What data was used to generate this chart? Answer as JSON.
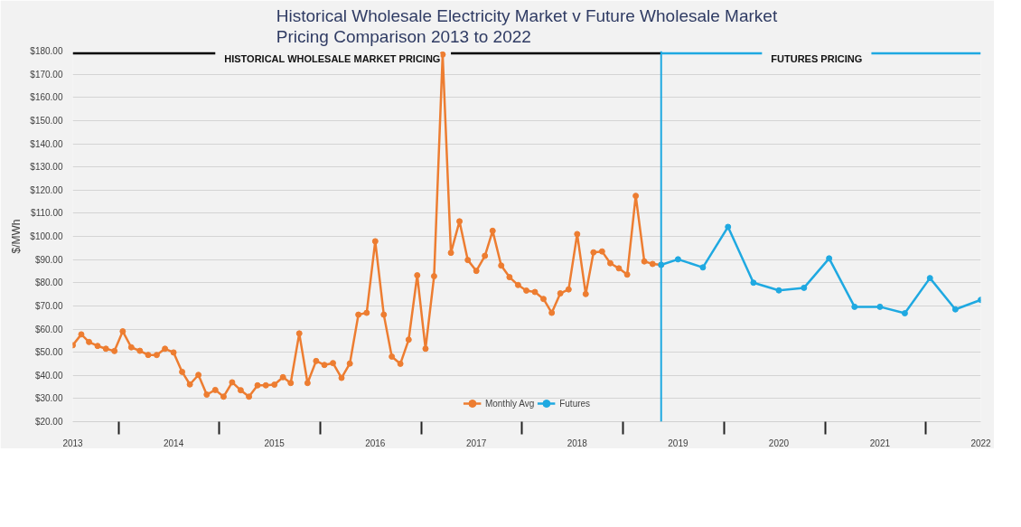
{
  "chart_data": {
    "type": "line",
    "title": "Historical Wholesale Electricity Market v Future Wholesale Market\nPricing Comparison 2013 to 2022",
    "ylabel": "$/MWh",
    "x": [
      "2013-01",
      "2013-02",
      "2013-03",
      "2013-04",
      "2013-05",
      "2013-06",
      "2013-07",
      "2013-08",
      "2013-09",
      "2013-10",
      "2013-11",
      "2013-12",
      "2014-01",
      "2014-02",
      "2014-03",
      "2014-04",
      "2014-05",
      "2014-06",
      "2014-07",
      "2014-08",
      "2014-09",
      "2014-10",
      "2014-11",
      "2014-12",
      "2015-01",
      "2015-02",
      "2015-03",
      "2015-04",
      "2015-05",
      "2015-06",
      "2015-07",
      "2015-08",
      "2015-09",
      "2015-10",
      "2015-11",
      "2015-12",
      "2016-01",
      "2016-02",
      "2016-03",
      "2016-04",
      "2016-05",
      "2016-06",
      "2016-07",
      "2016-08",
      "2016-09",
      "2016-10",
      "2016-11",
      "2016-12",
      "2017-01",
      "2017-02",
      "2017-03",
      "2017-04",
      "2017-05",
      "2017-06",
      "2017-07",
      "2017-08",
      "2017-09",
      "2017-10",
      "2017-11",
      "2017-12",
      "2018-01",
      "2018-02",
      "2018-03",
      "2018-04",
      "2018-05",
      "2018-06",
      "2018-07",
      "2018-08",
      "2018-09",
      "2018-10",
      "2018-11"
    ],
    "series": [
      {
        "name": "Monthly Avg",
        "color": "#ed7d31",
        "values": [
          53.0,
          57.7,
          54.4,
          52.7,
          51.5,
          50.5,
          59.0,
          52.1,
          50.6,
          48.8,
          48.8,
          51.5,
          49.9,
          41.5,
          36.1,
          40.2,
          31.7,
          33.7,
          30.8,
          37.0,
          33.6,
          30.8,
          35.7,
          35.7,
          36.0,
          39.2,
          36.7,
          58.1,
          36.7,
          46.2,
          44.5,
          45.3,
          38.9,
          45.1,
          66.2,
          67.0,
          97.9,
          66.2,
          48.1,
          45.0,
          55.4,
          83.2,
          51.5,
          82.8,
          178.5,
          92.9,
          106.5,
          89.8,
          85.1,
          91.6,
          102.4,
          87.4,
          82.4,
          79.0,
          76.6,
          76.0,
          73.0,
          67.0,
          75.4,
          77.1,
          101.0,
          75.1,
          93.1,
          93.5,
          88.4,
          86.2,
          83.5,
          117.5,
          89.2,
          88.1,
          87.7
        ]
      },
      {
        "name": "Futures",
        "color": "#1fa9e1",
        "x": [
          "2018-11",
          "2019-01",
          "2019-04",
          "2019-07",
          "2019-10",
          "2020-01",
          "2020-04",
          "2020-07",
          "2020-10",
          "2021-01",
          "2021-04",
          "2021-07",
          "2021-10",
          "2022-01"
        ],
        "values": [
          87.7,
          90.1,
          86.6,
          104.1,
          80.0,
          76.7,
          77.8,
          90.5,
          69.6,
          69.6,
          66.8,
          82.0,
          68.5,
          72.6
        ]
      },
      {
        "color": "#000000",
        "marker": "none",
        "x": [
          "2013-01",
          "2014-06",
          "2015-08",
          "2016-10",
          "2018-11"
        ],
        "values": [
          179,
          179,
          null,
          179,
          179
        ]
      },
      {
        "color": "#1fa9e1",
        "marker": "none",
        "x": [
          "2018-11",
          "2019-11",
          "2020-06",
          "2020-12",
          "2022-01"
        ],
        "values": [
          179,
          179,
          null,
          179,
          179
        ]
      }
    ],
    "annotations": [
      {
        "text": "HISTORICAL WHOLESALE MARKET PRICING",
        "x": "2014-06",
        "y": 179
      },
      {
        "text": "FUTURES PRICING",
        "x": "2019-11",
        "y": 179
      }
    ],
    "ref_lines": [
      {
        "axis": "x",
        "value": "2018-11",
        "color": "#1fa9e1"
      }
    ],
    "xlim": [
      "2013-01",
      "2022-01"
    ],
    "xticks": [
      {
        "value": "2013-01",
        "label": "2013"
      },
      {
        "value": "2013-06-16",
        "label": null
      },
      {
        "value": "2014-01",
        "label": "2014"
      },
      {
        "value": "2014-06-16",
        "label": null
      },
      {
        "value": "2015-01",
        "label": "2015"
      },
      {
        "value": "2015-06-16",
        "label": null
      },
      {
        "value": "2016-01",
        "label": "2016"
      },
      {
        "value": "2016-06-16",
        "label": null
      },
      {
        "value": "2017-01",
        "label": "2017"
      },
      {
        "value": "2017-06-16",
        "label": null
      },
      {
        "value": "2018-01",
        "label": "2018"
      },
      {
        "value": "2018-06-16",
        "label": null
      },
      {
        "value": "2019-01",
        "label": "2019"
      },
      {
        "value": "2019-06-16",
        "label": null
      },
      {
        "value": "2020-01",
        "label": "2020"
      },
      {
        "value": "2020-06-16",
        "label": null
      },
      {
        "value": "2021-01",
        "label": "2021"
      },
      {
        "value": "2021-06-16",
        "label": null
      },
      {
        "value": "2022-01",
        "label": "2022"
      }
    ],
    "ylim": [
      20,
      180
    ],
    "yticks": [
      {
        "value": 20,
        "label": "$20.00"
      },
      {
        "value": 30,
        "label": "$30.00"
      },
      {
        "value": 40,
        "label": "$40.00"
      },
      {
        "value": 50,
        "label": "$50.00"
      },
      {
        "value": 60,
        "label": "$60.00"
      },
      {
        "value": 70,
        "label": "$70.00"
      },
      {
        "value": 80,
        "label": "$80.00"
      },
      {
        "value": 90,
        "label": "$90.00"
      },
      {
        "value": 100,
        "label": "$100.00"
      },
      {
        "value": 110,
        "label": "$110.00"
      },
      {
        "value": 120,
        "label": "$120.00"
      },
      {
        "value": 130,
        "label": "$130.00"
      },
      {
        "value": 140,
        "label": "$140.00"
      },
      {
        "value": 150,
        "label": "$150.00"
      },
      {
        "value": 160,
        "label": "$160.00"
      },
      {
        "value": 170,
        "label": "$170.00"
      },
      {
        "value": 180,
        "label": "$180.00"
      }
    ],
    "grid": "y",
    "legend": "bottom",
    "marker": "circle",
    "line_style": "solid"
  }
}
